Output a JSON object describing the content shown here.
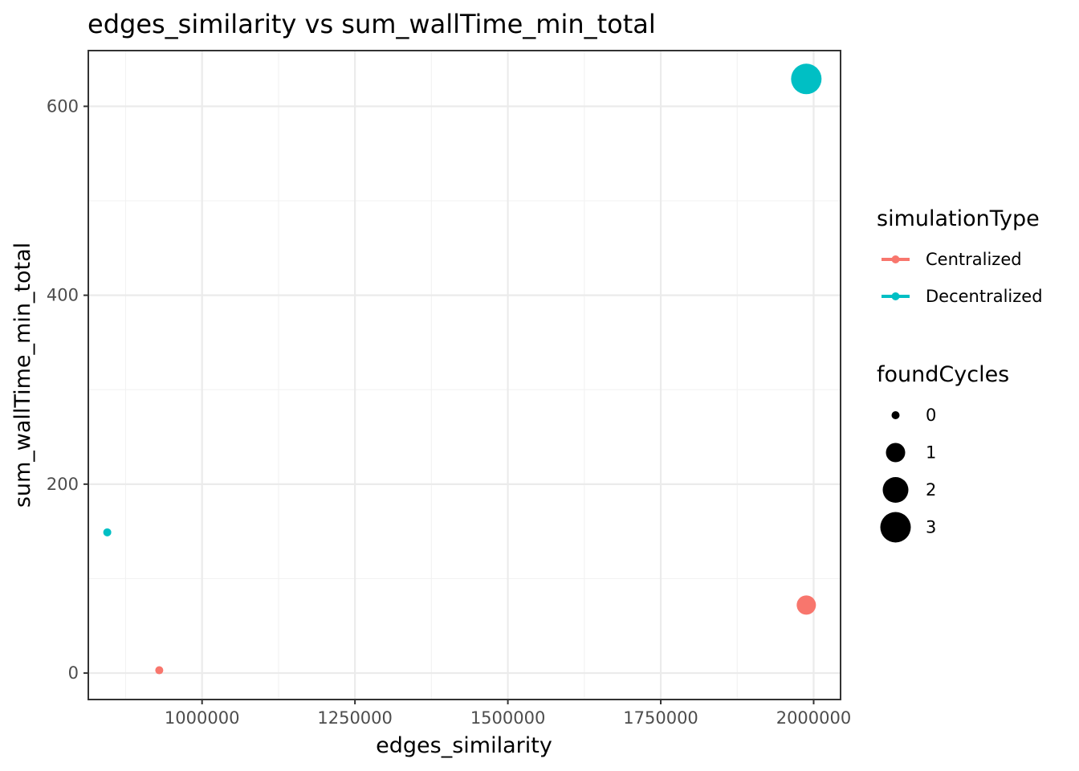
{
  "chart_data": {
    "type": "scatter",
    "title": "edges_similarity  vs  sum_wallTime_min_total",
    "xlabel": "edges_similarity",
    "ylabel": "sum_wallTime_min_total",
    "xlim": [
      814000,
      2044000
    ],
    "ylim": [
      -28,
      659
    ],
    "x_ticks": [
      1000000,
      1250000,
      1500000,
      1750000,
      2000000
    ],
    "x_tick_labels": [
      "1000000",
      "1250000",
      "1500000",
      "1750000",
      "2000000"
    ],
    "y_ticks": [
      0,
      200,
      400,
      600
    ],
    "y_tick_labels": [
      "0",
      "200",
      "400",
      "600"
    ],
    "grid": true,
    "legend_position": "right",
    "color_legend": {
      "title": "simulationType",
      "entries": [
        {
          "label": "Centralized",
          "color": "#F8766D"
        },
        {
          "label": "Decentralized",
          "color": "#00BFC4"
        }
      ]
    },
    "size_legend": {
      "title": "foundCycles",
      "entries": [
        {
          "label": "0",
          "value": 0
        },
        {
          "label": "1",
          "value": 1
        },
        {
          "label": "2",
          "value": 2
        },
        {
          "label": "3",
          "value": 3
        }
      ]
    },
    "series": [
      {
        "name": "Centralized",
        "color": "#F8766D",
        "points": [
          {
            "x": 930000,
            "y": 3,
            "foundCycles": 0
          },
          {
            "x": 1988000,
            "y": 72,
            "foundCycles": 1
          }
        ]
      },
      {
        "name": "Decentralized",
        "color": "#00BFC4",
        "points": [
          {
            "x": 845000,
            "y": 149,
            "foundCycles": 0
          },
          {
            "x": 1988000,
            "y": 629,
            "foundCycles": 3
          }
        ]
      }
    ]
  }
}
